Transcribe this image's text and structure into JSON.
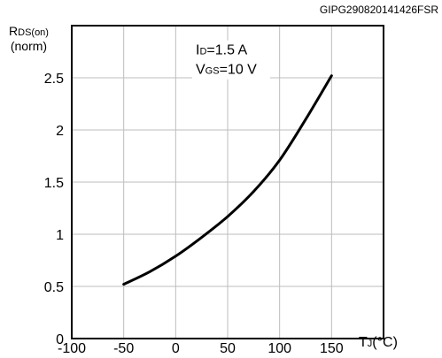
{
  "chart_data": {
    "type": "line",
    "figure_code": "GIPG290820141426FSR",
    "ylabel": {
      "main": "R",
      "sub": "DS(on)",
      "unit": "(norm)"
    },
    "xlabel": {
      "main": "T",
      "sub": "J",
      "unit": "(°C)"
    },
    "xlim": [
      -100,
      200
    ],
    "ylim": [
      0,
      3
    ],
    "xticks": [
      -100,
      -50,
      0,
      50,
      100,
      150
    ],
    "xtick_labels": [
      "-100",
      "-50",
      "0",
      "50",
      "100",
      "150"
    ],
    "yticks": [
      0,
      0.5,
      1,
      1.5,
      2,
      2.5
    ],
    "ytick_labels": [
      "0",
      "0.5",
      "1",
      "1.5",
      "2",
      "2.5"
    ],
    "grid": true,
    "annotations": [
      {
        "main": "I",
        "sub": "D",
        "rest": "=1.5 A"
      },
      {
        "main": "V",
        "sub": "GS",
        "rest": "=10 V"
      }
    ],
    "series": [
      {
        "x": [
          -50,
          -25,
          0,
          25,
          50,
          75,
          100,
          125,
          150
        ],
        "y": [
          0.52,
          0.64,
          0.79,
          0.97,
          1.17,
          1.41,
          1.71,
          2.1,
          2.52
        ]
      }
    ]
  }
}
